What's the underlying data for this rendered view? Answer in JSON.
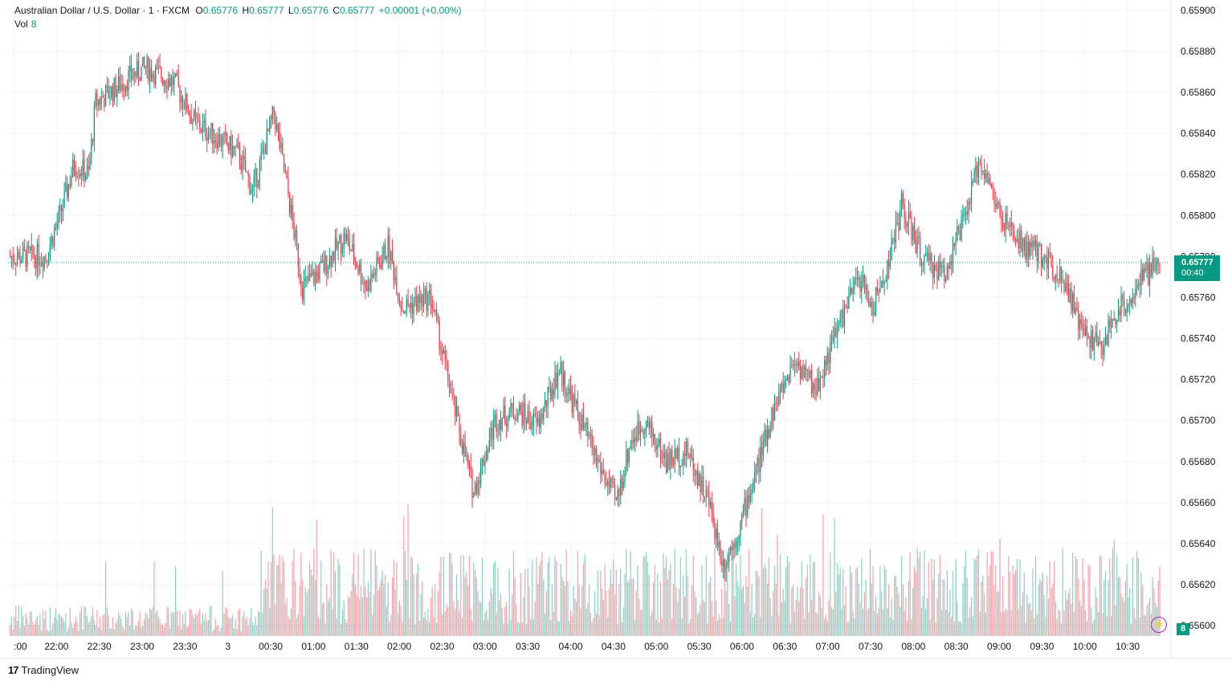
{
  "header": {
    "symbol": "Australian Dollar / U.S. Dollar · 1 · FXCM",
    "open_label": "O",
    "open": "0.65776",
    "high_label": "H",
    "high": "0.65777",
    "low_label": "L",
    "low": "0.65776",
    "close_label": "C",
    "close": "0.65777",
    "change": "+0.00001 (+0.00%)"
  },
  "volume_legend": {
    "label": "Vol",
    "value": "8"
  },
  "price_badge": {
    "price": "0.65777",
    "countdown": "00:40"
  },
  "volume_badge": "8",
  "footer": {
    "brand": "TradingView",
    "logo_mark": "17"
  },
  "colors": {
    "up": "#089981",
    "down": "#f23645",
    "grid": "#f0f3fa",
    "axis_text": "#131722"
  },
  "chart_data": {
    "type": "candlestick",
    "symbol": "AUD/USD",
    "interval": "1 minute",
    "ylim": [
      0.65595,
      0.65905
    ],
    "y_ticks": [
      "0.65900",
      "0.65880",
      "0.65860",
      "0.65840",
      "0.65820",
      "0.65800",
      "0.65780",
      "0.65760",
      "0.65740",
      "0.65720",
      "0.65700",
      "0.65680",
      "0.65660",
      "0.65640",
      "0.65620",
      "0.65600"
    ],
    "x_ticks": [
      ":00",
      "22:00",
      "22:30",
      "23:00",
      "23:30",
      "3",
      "00:30",
      "01:00",
      "01:30",
      "02:00",
      "02:30",
      "03:00",
      "03:30",
      "04:00",
      "04:30",
      "05:00",
      "05:30",
      "06:00",
      "06:30",
      "07:00",
      "07:30",
      "08:00",
      "08:30",
      "09:00",
      "09:30",
      "10:00",
      "10:30"
    ],
    "last_price": 0.65777,
    "price_path": [
      {
        "t": "21:30",
        "p": 0.6578
      },
      {
        "t": "21:40",
        "p": 0.658
      },
      {
        "t": "21:50",
        "p": 0.65825
      },
      {
        "t": "22:00",
        "p": 0.6582
      },
      {
        "t": "22:05",
        "p": 0.65855
      },
      {
        "t": "22:15",
        "p": 0.6586
      },
      {
        "t": "22:30",
        "p": 0.65868
      },
      {
        "t": "22:40",
        "p": 0.65872
      },
      {
        "t": "23:00",
        "p": 0.65865
      },
      {
        "t": "23:15",
        "p": 0.65845
      },
      {
        "t": "23:30",
        "p": 0.65838
      },
      {
        "t": "23:45",
        "p": 0.6583
      },
      {
        "t": "23:55",
        "p": 0.65812
      },
      {
        "t": "00:10",
        "p": 0.6585
      },
      {
        "t": "00:20",
        "p": 0.6581
      },
      {
        "t": "00:30",
        "p": 0.65765
      },
      {
        "t": "00:45",
        "p": 0.65775
      },
      {
        "t": "01:00",
        "p": 0.6579
      },
      {
        "t": "01:15",
        "p": 0.65765
      },
      {
        "t": "01:30",
        "p": 0.65785
      },
      {
        "t": "01:40",
        "p": 0.65755
      },
      {
        "t": "02:00",
        "p": 0.6576
      },
      {
        "t": "02:15",
        "p": 0.6571
      },
      {
        "t": "02:30",
        "p": 0.65665
      },
      {
        "t": "02:45",
        "p": 0.657
      },
      {
        "t": "03:00",
        "p": 0.65705
      },
      {
        "t": "03:15",
        "p": 0.65698
      },
      {
        "t": "03:30",
        "p": 0.65725
      },
      {
        "t": "03:45",
        "p": 0.657
      },
      {
        "t": "04:00",
        "p": 0.65675
      },
      {
        "t": "04:10",
        "p": 0.6566
      },
      {
        "t": "04:20",
        "p": 0.6569
      },
      {
        "t": "04:30",
        "p": 0.657
      },
      {
        "t": "04:45",
        "p": 0.6568
      },
      {
        "t": "05:00",
        "p": 0.65685
      },
      {
        "t": "05:15",
        "p": 0.6566
      },
      {
        "t": "05:25",
        "p": 0.6563
      },
      {
        "t": "05:35",
        "p": 0.65645
      },
      {
        "t": "05:50",
        "p": 0.6568
      },
      {
        "t": "06:00",
        "p": 0.65705
      },
      {
        "t": "06:15",
        "p": 0.6573
      },
      {
        "t": "06:30",
        "p": 0.65715
      },
      {
        "t": "06:45",
        "p": 0.65745
      },
      {
        "t": "07:00",
        "p": 0.6577
      },
      {
        "t": "07:10",
        "p": 0.65755
      },
      {
        "t": "07:20",
        "p": 0.65775
      },
      {
        "t": "07:30",
        "p": 0.65805
      },
      {
        "t": "07:45",
        "p": 0.65778
      },
      {
        "t": "08:00",
        "p": 0.65772
      },
      {
        "t": "08:15",
        "p": 0.658
      },
      {
        "t": "08:25",
        "p": 0.65828
      },
      {
        "t": "08:40",
        "p": 0.65798
      },
      {
        "t": "08:55",
        "p": 0.65785
      },
      {
        "t": "09:10",
        "p": 0.6578
      },
      {
        "t": "09:25",
        "p": 0.65768
      },
      {
        "t": "09:35",
        "p": 0.65745
      },
      {
        "t": "09:50",
        "p": 0.65735
      },
      {
        "t": "10:00",
        "p": 0.65752
      },
      {
        "t": "10:10",
        "p": 0.6576
      },
      {
        "t": "10:20",
        "p": 0.6577
      },
      {
        "t": "10:31",
        "p": 0.65777
      }
    ]
  }
}
